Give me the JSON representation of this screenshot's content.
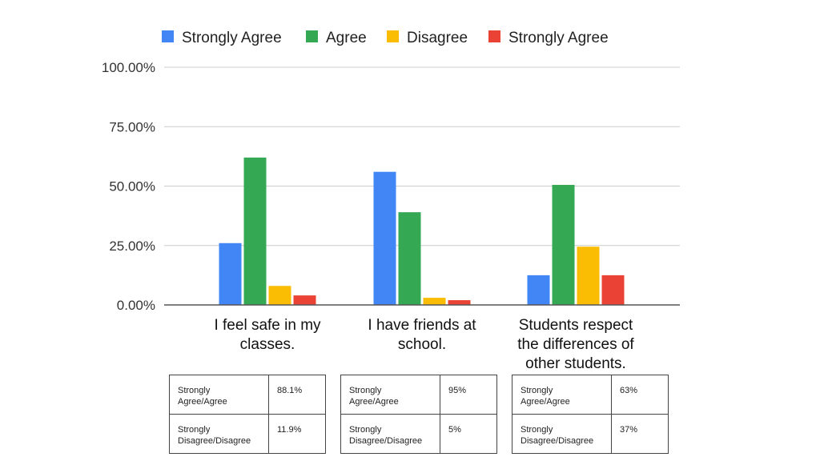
{
  "chart_data": {
    "type": "bar",
    "categories": [
      "I feel safe in my classes.",
      "I have friends at school.",
      "Students respect the differences of other students."
    ],
    "category_lines": [
      [
        "I feel safe in my",
        "classes."
      ],
      [
        "I have friends at",
        "school."
      ],
      [
        "Students respect",
        "the differences of",
        "other students."
      ]
    ],
    "series": [
      {
        "name": "Strongly Agree",
        "color": "#4285F4",
        "values": [
          26,
          56,
          12.5
        ]
      },
      {
        "name": "Agree",
        "color": "#34A853",
        "values": [
          62,
          39,
          50.5
        ]
      },
      {
        "name": "Disagree",
        "color": "#FBBC04",
        "values": [
          8,
          3,
          24.5
        ]
      },
      {
        "name": "Strongly Agree",
        "color": "#EA4335",
        "values": [
          4,
          2,
          12.5
        ]
      }
    ],
    "ylim": [
      0,
      100
    ],
    "yticks": [
      "0.00%",
      "25.00%",
      "50.00%",
      "75.00%",
      "100.00%"
    ],
    "ytick_values": [
      0,
      25,
      50,
      75,
      100
    ],
    "legend_position": "top",
    "grid": true,
    "title": "",
    "xlabel": "",
    "ylabel": ""
  },
  "tables": [
    {
      "rows": [
        {
          "label": "Strongly Agree/Agree",
          "value": "88.1%"
        },
        {
          "label": "Strongly Disagree/Disagree",
          "value": "11.9%"
        }
      ]
    },
    {
      "rows": [
        {
          "label": "Strongly Agree/Agree",
          "value": "95%"
        },
        {
          "label": "Strongly Disagree/Disagree",
          "value": "5%"
        }
      ]
    },
    {
      "rows": [
        {
          "label": "Strongly Agree/Agree",
          "value": "63%"
        },
        {
          "label": "Strongly Disagree/Disagree",
          "value": "37%"
        }
      ]
    }
  ]
}
